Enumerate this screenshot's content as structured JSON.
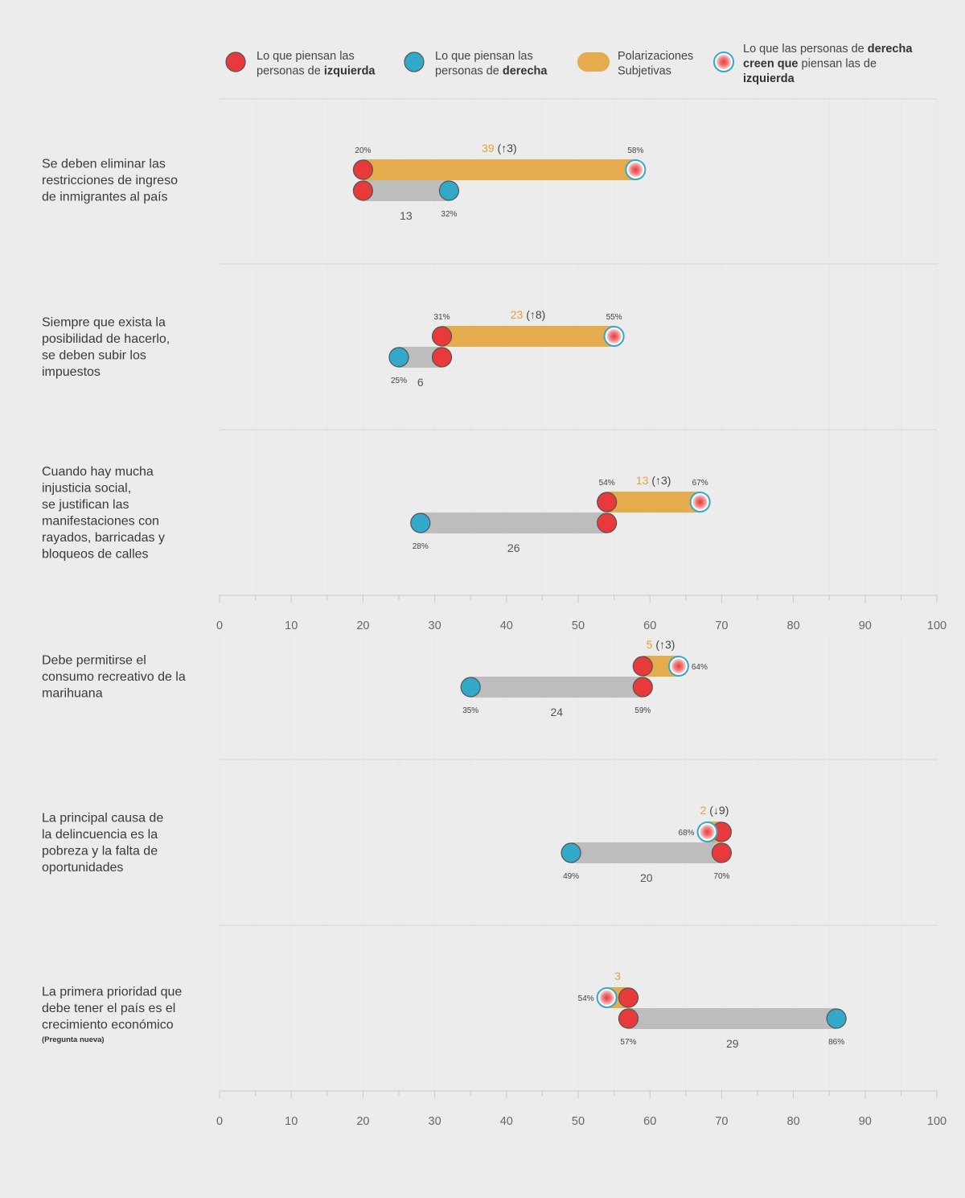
{
  "legend": [
    {
      "type": "left",
      "lines": [
        [
          {
            "t": "Lo que piensan las"
          }
        ],
        [
          {
            "t": "personas de "
          },
          {
            "t": "izquierda",
            "b": true
          }
        ]
      ]
    },
    {
      "type": "right",
      "lines": [
        [
          {
            "t": "Lo que piensan las"
          }
        ],
        [
          {
            "t": "personas de "
          },
          {
            "t": "derecha",
            "b": true
          }
        ]
      ]
    },
    {
      "type": "polar",
      "lines": [
        [
          {
            "t": "Polarizaciones"
          }
        ],
        [
          {
            "t": "Subjetivas"
          }
        ]
      ]
    },
    {
      "type": "perceived",
      "lines": [
        [
          {
            "t": "Lo que las personas de "
          },
          {
            "t": "derecha",
            "b": true
          }
        ],
        [
          {
            "t": "creen que",
            "b": true
          },
          {
            "t": " piensan las de"
          }
        ],
        [
          {
            "t": "izquierda",
            "b": true
          }
        ]
      ]
    }
  ],
  "colors": {
    "left": "#e8393b",
    "right": "#32a9c9",
    "polar_bar": "#e5ac4e",
    "real_bar": "#bdbdbd",
    "orange_text": "#e5a13a",
    "background": "#ececec"
  },
  "chart_data": {
    "type": "dumbbell",
    "xlim": [
      0,
      100
    ],
    "axis_ticks": [
      "0",
      "10",
      "20",
      "30",
      "40",
      "50",
      "60",
      "70",
      "80",
      "90",
      "100"
    ],
    "items": [
      {
        "question_lines": [
          "Se deben eliminar las",
          "restricciones de ingreso",
          "de inmigrantes al país"
        ],
        "note": "",
        "left": 20,
        "right": 32,
        "perceived": 58,
        "left_label": "20%",
        "right_label": "32%",
        "perceived_label": "58%",
        "polar_value": "39",
        "polar_delta": "(↑3)",
        "real_gap": "13"
      },
      {
        "question_lines": [
          "Siempre que exista la",
          "posibilidad de hacerlo,",
          "se deben subir los",
          "impuestos"
        ],
        "note": "",
        "left": 31,
        "right": 25,
        "perceived": 55,
        "left_label": "31%",
        "right_label": "25%",
        "perceived_label": "55%",
        "polar_value": "23",
        "polar_delta": "(↑8)",
        "real_gap": "6"
      },
      {
        "question_lines": [
          "Cuando hay mucha",
          "injusticia social,",
          "se justifican las",
          "manifestaciones con",
          "rayados, barricadas y",
          "bloqueos de calles"
        ],
        "note": "",
        "left": 54,
        "right": 28,
        "perceived": 67,
        "left_label": "54%",
        "right_label": "28%",
        "perceived_label": "67%",
        "polar_value": "13",
        "polar_delta": "(↑3)",
        "real_gap": "26"
      },
      {
        "question_lines": [
          "Debe permitirse el",
          "consumo recreativo de la",
          "marihuana"
        ],
        "note": "",
        "left": 59,
        "right": 35,
        "perceived": 64,
        "left_label": "59%",
        "right_label": "35%",
        "perceived_label": "64%",
        "polar_value": "5",
        "polar_delta": "(↑3)",
        "real_gap": "24"
      },
      {
        "question_lines": [
          "La principal causa de",
          "la delincuencia es la",
          "pobreza y la falta de",
          "oportunidades"
        ],
        "note": "",
        "left": 70,
        "right": 49,
        "perceived": 68,
        "left_label": "70%",
        "right_label": "49%",
        "perceived_label": "68%",
        "polar_value": "2",
        "polar_delta": "(↓9)",
        "real_gap": "20"
      },
      {
        "question_lines": [
          "La primera prioridad que",
          "debe tener el país es el",
          "crecimiento económico"
        ],
        "note": "(Pregunta nueva)",
        "left": 57,
        "right": 86,
        "perceived": 54,
        "left_label": "57%",
        "right_label": "86%",
        "perceived_label": "54%",
        "polar_value": "3",
        "polar_delta": "",
        "real_gap": "29"
      }
    ]
  }
}
